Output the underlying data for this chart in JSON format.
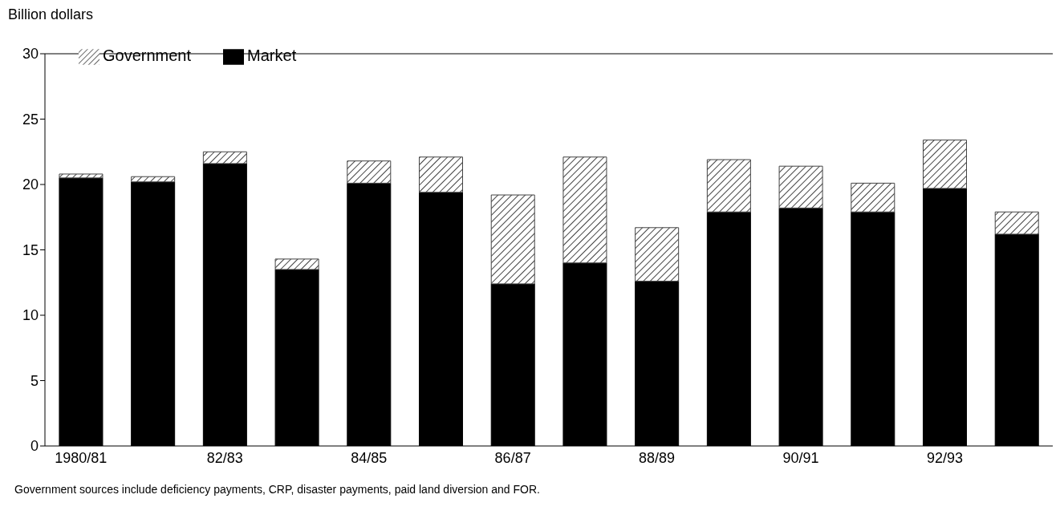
{
  "chart_data": {
    "type": "bar",
    "stacked": true,
    "ylabel": "Billion dollars",
    "categories": [
      "1980/81",
      null,
      "82/83",
      null,
      "84/85",
      null,
      "86/87",
      null,
      "88/89",
      null,
      "90/91",
      null,
      "92/93",
      null
    ],
    "series": [
      {
        "name": "Market",
        "color": "#000000",
        "values": [
          20.5,
          20.2,
          21.6,
          13.5,
          20.1,
          19.4,
          12.4,
          14.0,
          12.6,
          17.9,
          18.2,
          17.9,
          19.7,
          16.2
        ]
      },
      {
        "name": "Government",
        "color": "#444444",
        "values": [
          0.3,
          0.4,
          0.9,
          0.8,
          1.7,
          2.7,
          6.8,
          8.1,
          4.1,
          4.0,
          3.2,
          2.2,
          3.7,
          1.7
        ]
      }
    ],
    "ylim": [
      0,
      30
    ],
    "yticks": [
      0,
      5,
      10,
      15,
      20,
      25,
      30
    ],
    "grid": false,
    "legend": "top left",
    "annotations": [
      "Government sources include deficiency payments, CRP, disaster payments, paid land diversion and FOR."
    ]
  }
}
